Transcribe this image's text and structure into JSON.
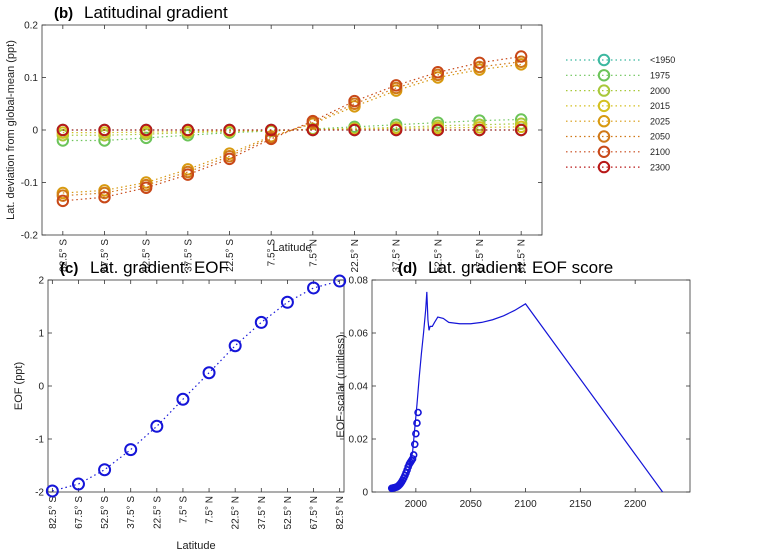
{
  "chart_data": [
    {
      "panel": "(b)",
      "title": "Latitudinal gradient",
      "type": "line",
      "xlabel": "Latitude",
      "ylabel": "Lat. deviation from global-mean (ppt)",
      "categories": [
        "82.5° S",
        "67.5° S",
        "52.5° S",
        "37.5° S",
        "22.5° S",
        "7.5° S",
        "7.5° N",
        "22.5° N",
        "37.5° N",
        "52.5° N",
        "67.5° N",
        "82.5° N"
      ],
      "x": [
        -82.5,
        -67.5,
        -52.5,
        -37.5,
        -22.5,
        -7.5,
        7.5,
        22.5,
        37.5,
        52.5,
        67.5,
        82.5
      ],
      "xlim": [
        -90,
        90
      ],
      "ylim": [
        -0.2,
        0.2
      ],
      "yticks": [
        -0.2,
        -0.1,
        0,
        0.1,
        0.2
      ],
      "ytick_labels": [
        "-0.2",
        "-0.1",
        "0",
        "0.1",
        "0.2"
      ],
      "legend_position": "right",
      "series": [
        {
          "name": "<1950",
          "color": "#3cb8a0",
          "values": [
            0,
            0,
            0,
            0,
            0,
            0,
            0,
            0,
            0,
            0,
            0,
            0
          ]
        },
        {
          "name": "1975",
          "color": "#6cc45a",
          "values": [
            -0.02,
            -0.02,
            -0.015,
            -0.01,
            -0.005,
            -0.002,
            0.002,
            0.006,
            0.01,
            0.014,
            0.018,
            0.02
          ]
        },
        {
          "name": "2000",
          "color": "#a8c83a",
          "values": [
            -0.01,
            -0.01,
            -0.008,
            -0.005,
            -0.003,
            -0.001,
            0.001,
            0.003,
            0.005,
            0.008,
            0.01,
            0.012
          ]
        },
        {
          "name": "2015",
          "color": "#d4c020",
          "values": [
            -0.005,
            -0.005,
            -0.004,
            -0.003,
            -0.002,
            -0.001,
            0.001,
            0.002,
            0.003,
            0.004,
            0.005,
            0.006
          ]
        },
        {
          "name": "2025",
          "color": "#d89a10",
          "values": [
            -0.12,
            -0.115,
            -0.1,
            -0.075,
            -0.045,
            -0.012,
            0.012,
            0.045,
            0.075,
            0.1,
            0.115,
            0.125
          ]
        },
        {
          "name": "2050",
          "color": "#d07818",
          "values": [
            -0.125,
            -0.12,
            -0.105,
            -0.08,
            -0.05,
            -0.014,
            0.014,
            0.05,
            0.08,
            0.105,
            0.12,
            0.13
          ]
        },
        {
          "name": "2100",
          "color": "#c84818",
          "values": [
            -0.135,
            -0.128,
            -0.11,
            -0.085,
            -0.055,
            -0.017,
            0.017,
            0.055,
            0.085,
            0.11,
            0.128,
            0.14
          ]
        },
        {
          "name": "2300",
          "color": "#b81818",
          "values": [
            0,
            0,
            0,
            0,
            0,
            0,
            0,
            0,
            0,
            0,
            0,
            0
          ]
        }
      ]
    },
    {
      "panel": "(c)",
      "title": "Lat. gradient: EOF",
      "type": "line",
      "xlabel": "Latitude",
      "ylabel": "EOF (ppt)",
      "categories": [
        "82.5° S",
        "67.5° S",
        "52.5° S",
        "37.5° S",
        "22.5° S",
        "7.5° S",
        "7.5° N",
        "22.5° N",
        "37.5° N",
        "52.5° N",
        "67.5° N",
        "82.5° N"
      ],
      "x": [
        -82.5,
        -67.5,
        -52.5,
        -37.5,
        -22.5,
        -7.5,
        7.5,
        22.5,
        37.5,
        52.5,
        67.5,
        82.5
      ],
      "xlim": [
        -85,
        85
      ],
      "ylim": [
        -2,
        2
      ],
      "yticks": [
        -2,
        -1,
        0,
        1,
        2
      ],
      "ytick_labels": [
        "-2",
        "-1",
        "0",
        "1",
        "2"
      ],
      "series": [
        {
          "color": "#1515d8",
          "values": [
            -1.98,
            -1.85,
            -1.58,
            -1.2,
            -0.76,
            -0.25,
            0.25,
            0.76,
            1.2,
            1.58,
            1.85,
            1.98
          ]
        }
      ]
    },
    {
      "panel": "(d)",
      "title": "Lat. gradient: EOF score",
      "type": "line",
      "xlabel": "",
      "ylabel": "EOF-scalar (unitless)",
      "xlim": [
        1960,
        2250
      ],
      "ylim": [
        0,
        0.08
      ],
      "xticks": [
        2000,
        2050,
        2100,
        2150,
        2200
      ],
      "xtick_labels": [
        "2000",
        "2050",
        "2100",
        "2150",
        "2200"
      ],
      "yticks": [
        0,
        0.02,
        0.04,
        0.06,
        0.08
      ],
      "ytick_labels": [
        "0",
        "0.02",
        "0.04",
        "0.06",
        "0.08"
      ],
      "series": [
        {
          "color": "#1515d8",
          "line_x": [
            1978,
            1982,
            1986,
            1990,
            1994,
            1997,
            1999,
            2001,
            2003,
            2005,
            2007,
            2009,
            2010,
            2011,
            2012,
            2013,
            2015,
            2017,
            2020,
            2025,
            2030,
            2040,
            2050,
            2060,
            2070,
            2080,
            2090,
            2100,
            2125,
            2150,
            2175,
            2200,
            2225,
            2250
          ],
          "line_y": [
            0.0015,
            0.0018,
            0.003,
            0.0055,
            0.009,
            0.015,
            0.024,
            0.033,
            0.043,
            0.052,
            0.06,
            0.069,
            0.0755,
            0.065,
            0.061,
            0.0625,
            0.0625,
            0.064,
            0.066,
            0.0655,
            0.064,
            0.0635,
            0.0635,
            0.064,
            0.065,
            0.0665,
            0.0685,
            0.071,
            0.0568,
            0.0426,
            0.0284,
            0.0142,
            0.0,
            -0.0142
          ],
          "markers_x": [
            1978,
            1979,
            1980,
            1981,
            1982,
            1983,
            1984,
            1985,
            1986,
            1987,
            1988,
            1989,
            1990,
            1991,
            1992,
            1993,
            1994,
            1995,
            1996,
            1997,
            1998,
            1999,
            2000,
            2001,
            2002
          ],
          "markers_y": [
            0.0014,
            0.0015,
            0.0016,
            0.0017,
            0.0018,
            0.002,
            0.0023,
            0.0027,
            0.0032,
            0.0038,
            0.0045,
            0.0053,
            0.0062,
            0.0072,
            0.0083,
            0.0095,
            0.0105,
            0.0112,
            0.0118,
            0.0125,
            0.014,
            0.018,
            0.022,
            0.026,
            0.03
          ]
        }
      ]
    }
  ]
}
